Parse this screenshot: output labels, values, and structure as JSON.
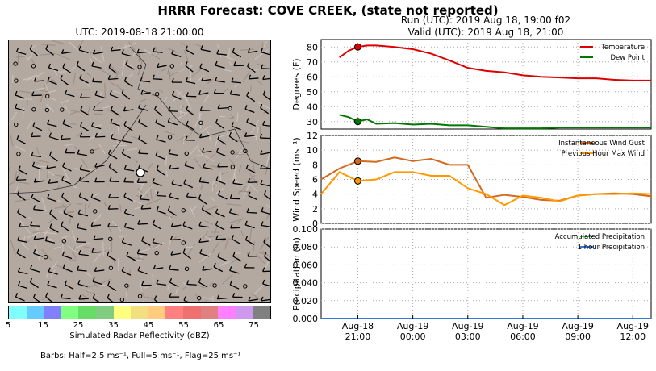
{
  "title": "HRRR Forecast: COVE CREEK, (state not reported)",
  "map": {
    "title": "UTC: 2019-08-18 21:00:00",
    "colorbar_label": "Simulated Radar Reflectivity (dBZ)",
    "colorbar_ticks": [
      "5",
      "15",
      "25",
      "35",
      "45",
      "55",
      "65",
      "75"
    ],
    "colorbar_colors": [
      "#7fffff",
      "#66ccff",
      "#8080ff",
      "#80ff80",
      "#66dd66",
      "#80cc80",
      "#ffff80",
      "#f2e080",
      "#ffcc80",
      "#ff8080",
      "#ee7070",
      "#e08080",
      "#ff80ff",
      "#cc99ee",
      "#808080"
    ],
    "barbs_note": "Barbs: Half=2.5 ms⁻¹, Full=5 ms⁻¹, Flag=25 ms⁻¹"
  },
  "run_label": "Run (UTC): 2019 Aug 18, 19:00 f02",
  "valid_label": "Valid (UTC): 2019 Aug 18, 21:00",
  "chart_data": [
    {
      "type": "line",
      "ylabel": "Degrees (F)",
      "ylim": [
        25,
        85
      ],
      "yticks": [
        30,
        40,
        50,
        60,
        70,
        80
      ],
      "x": [
        -1,
        -0.5,
        0,
        0.5,
        1,
        2,
        3,
        4,
        5,
        6,
        7,
        8,
        9,
        10,
        11,
        12,
        13,
        14,
        15,
        16
      ],
      "series": [
        {
          "name": "Temperature",
          "color": "#dd0000",
          "values": [
            73,
            77.5,
            80,
            81,
            81,
            80,
            78.5,
            75.5,
            71,
            66,
            64,
            63,
            61,
            60,
            59.5,
            59,
            59,
            58,
            57.5,
            57.5
          ]
        },
        {
          "name": "Dew Point",
          "color": "#007700",
          "values": [
            34.5,
            33,
            30,
            31.5,
            28.5,
            29,
            28,
            28.5,
            27.5,
            27.5,
            26.5,
            25.5,
            25.5,
            25.5,
            26,
            26,
            26,
            26,
            26,
            26
          ]
        }
      ],
      "marker_x": 0,
      "legend": "top-right",
      "grid": true
    },
    {
      "type": "line",
      "ylabel": "Wind Speed (ms⁻¹)",
      "ylim": [
        0,
        12
      ],
      "yticks": [
        0,
        2,
        4,
        6,
        8,
        10,
        12
      ],
      "x": [
        -2,
        -1,
        0,
        1,
        2,
        3,
        4,
        5,
        6,
        7,
        8,
        9,
        10,
        11,
        12,
        13,
        14,
        15,
        16,
        17,
        18
      ],
      "series": [
        {
          "name": "Instantaneous Wind Gust",
          "color": "#d2691e",
          "values": [
            6,
            7.5,
            8.5,
            8.4,
            9,
            8.5,
            8.8,
            8,
            8,
            3.5,
            3.9,
            3.6,
            3.2,
            3.1,
            3.8,
            4,
            4.1,
            4,
            3.7,
            3.7,
            3.5
          ]
        },
        {
          "name": "Previous Hour Max Wind",
          "color": "#ff9900",
          "values": [
            4,
            7,
            5.8,
            6,
            7,
            7,
            6.5,
            6.5,
            4.8,
            4,
            2.5,
            3.8,
            3.5,
            3,
            3.8,
            4,
            4,
            4.1,
            4,
            4,
            4
          ]
        }
      ],
      "marker_x": 0,
      "legend": "top-right",
      "grid": true
    },
    {
      "type": "line",
      "ylabel": "Precipitation (in)",
      "ylim": [
        0,
        0.1
      ],
      "yticks": [
        "0.000",
        "0.020",
        "0.040",
        "0.060",
        "0.080",
        "0.100"
      ],
      "x": [
        -2,
        16
      ],
      "series": [
        {
          "name": "Accumulated Precipitation",
          "color": "#33cc33",
          "values": [
            0,
            0
          ]
        },
        {
          "name": "1 hour Precipitation",
          "color": "#3377dd",
          "values": [
            0,
            0
          ]
        }
      ],
      "marker_x": 0,
      "legend": "top-right",
      "grid": true
    }
  ],
  "x_ticks": [
    {
      "line1": "Aug-18",
      "line2": "21:00",
      "x": 0
    },
    {
      "line1": "Aug-19",
      "line2": "00:00",
      "x": 3
    },
    {
      "line1": "Aug-19",
      "line2": "03:00",
      "x": 6
    },
    {
      "line1": "Aug-19",
      "line2": "06:00",
      "x": 9
    },
    {
      "line1": "Aug-19",
      "line2": "09:00",
      "x": 12
    },
    {
      "line1": "Aug-19",
      "line2": "12:00",
      "x": 15
    }
  ]
}
